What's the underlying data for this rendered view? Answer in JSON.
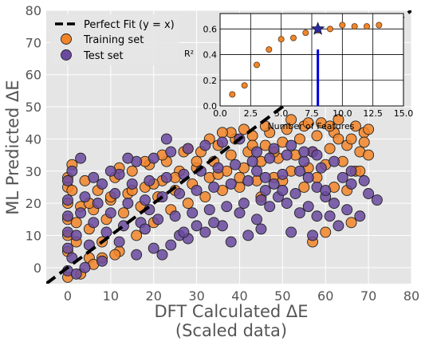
{
  "chart_data": [
    {
      "type": "scatter",
      "xlabel": "DFT Calculated ΔE",
      "xlabel_line2": "(Scaled data)",
      "ylabel": "ML Predicted ΔE",
      "xlim": [
        -5,
        80
      ],
      "ylim": [
        -5,
        80
      ],
      "xticks": [
        0,
        10,
        20,
        30,
        40,
        50,
        60,
        70,
        80
      ],
      "yticks": [
        0,
        10,
        20,
        30,
        40,
        50,
        60,
        70,
        80
      ],
      "grid": true,
      "legend_position": "top-left",
      "reference_line": {
        "name": "Perfect Fit (y = x)",
        "x": [
          -5,
          80
        ],
        "y": [
          -5,
          80
        ],
        "color": "#000000"
      },
      "series": [
        {
          "name": "Training set",
          "color": "#f28529",
          "points": [
            [
              0,
              5
            ],
            [
              0,
              10
            ],
            [
              0,
              15
            ],
            [
              0,
              20
            ],
            [
              0,
              25
            ],
            [
              0,
              -3
            ],
            [
              2,
              8
            ],
            [
              2,
              14
            ],
            [
              3,
              19
            ],
            [
              4,
              27
            ],
            [
              5,
              3
            ],
            [
              5,
              12
            ],
            [
              6,
              18
            ],
            [
              7,
              24
            ],
            [
              8,
              8
            ],
            [
              9,
              15
            ],
            [
              10,
              21
            ],
            [
              11,
              28
            ],
            [
              12,
              5
            ],
            [
              13,
              17
            ],
            [
              14,
              23
            ],
            [
              15,
              30
            ],
            [
              16,
              10
            ],
            [
              17,
              19
            ],
            [
              18,
              25
            ],
            [
              19,
              32
            ],
            [
              20,
              14
            ],
            [
              21,
              22
            ],
            [
              22,
              27
            ],
            [
              23,
              33
            ],
            [
              24,
              18
            ],
            [
              25,
              24
            ],
            [
              26,
              30
            ],
            [
              27,
              36
            ],
            [
              28,
              20
            ],
            [
              29,
              26
            ],
            [
              30,
              31
            ],
            [
              31,
              36
            ],
            [
              32,
              22
            ],
            [
              33,
              28
            ],
            [
              34,
              33
            ],
            [
              35,
              38
            ],
            [
              36,
              24
            ],
            [
              37,
              30
            ],
            [
              38,
              35
            ],
            [
              39,
              40
            ],
            [
              40,
              25
            ],
            [
              41,
              31
            ],
            [
              42,
              36
            ],
            [
              43,
              41
            ],
            [
              44,
              27
            ],
            [
              45,
              33
            ],
            [
              46,
              38
            ],
            [
              47,
              42
            ],
            [
              48,
              28
            ],
            [
              49,
              34
            ],
            [
              50,
              39
            ],
            [
              51,
              43
            ],
            [
              52,
              30
            ],
            [
              53,
              35
            ],
            [
              54,
              40
            ],
            [
              55,
              44
            ],
            [
              56,
              31
            ],
            [
              57,
              36
            ],
            [
              58,
              41
            ],
            [
              59,
              45
            ],
            [
              60,
              32
            ],
            [
              61,
              37
            ],
            [
              62,
              42
            ],
            [
              63,
              46
            ],
            [
              64,
              33
            ],
            [
              65,
              38
            ],
            [
              66,
              40
            ],
            [
              67,
              30
            ],
            [
              68,
              36
            ],
            [
              69,
              42
            ],
            [
              70,
              43
            ],
            [
              70,
              35
            ],
            [
              65,
              24
            ],
            [
              60,
              11
            ],
            [
              57,
              8
            ],
            [
              66,
              14
            ],
            [
              55,
              25
            ],
            [
              50,
              27
            ],
            [
              45,
              22
            ],
            [
              40,
              28
            ],
            [
              35,
              29
            ],
            [
              30,
              33
            ],
            [
              25,
              28
            ],
            [
              20,
              26
            ],
            [
              15,
              24
            ],
            [
              10,
              22
            ],
            [
              5,
              20
            ],
            [
              1,
              24
            ],
            [
              3,
              -2
            ],
            [
              6,
              1
            ],
            [
              8,
              3
            ],
            [
              11,
              4
            ],
            [
              62,
              25
            ],
            [
              68,
              30
            ],
            [
              58,
              28
            ],
            [
              48,
              36
            ],
            [
              43,
              38
            ],
            [
              38,
              42
            ],
            [
              33,
              40
            ],
            [
              28,
              37
            ],
            [
              22,
              35
            ],
            [
              18,
              33
            ],
            [
              12,
              31
            ],
            [
              63,
              40
            ],
            [
              0,
              28
            ],
            [
              1,
              32
            ],
            [
              67,
              44
            ],
            [
              69,
              39
            ],
            [
              61,
              44
            ],
            [
              56,
              45
            ],
            [
              52,
              46
            ],
            [
              46,
              44
            ],
            [
              41,
              43
            ],
            [
              36,
              42
            ]
          ]
        },
        {
          "name": "Test set",
          "color": "#6a4aa0",
          "points": [
            [
              0,
              -1
            ],
            [
              0,
              6
            ],
            [
              0,
              11
            ],
            [
              0,
              16
            ],
            [
              0,
              21
            ],
            [
              0,
              27
            ],
            [
              1,
              3
            ],
            [
              2,
              10
            ],
            [
              3,
              17
            ],
            [
              4,
              22
            ],
            [
              5,
              7
            ],
            [
              6,
              14
            ],
            [
              7,
              20
            ],
            [
              8,
              26
            ],
            [
              9,
              11
            ],
            [
              10,
              17
            ],
            [
              11,
              23
            ],
            [
              12,
              29
            ],
            [
              13,
              13
            ],
            [
              14,
              20
            ],
            [
              15,
              26
            ],
            [
              16,
              33
            ],
            [
              17,
              14
            ],
            [
              18,
              21
            ],
            [
              19,
              27
            ],
            [
              20,
              34
            ],
            [
              21,
              15
            ],
            [
              22,
              22
            ],
            [
              23,
              28
            ],
            [
              24,
              36
            ],
            [
              25,
              16
            ],
            [
              26,
              23
            ],
            [
              27,
              29
            ],
            [
              28,
              37
            ],
            [
              29,
              17
            ],
            [
              30,
              24
            ],
            [
              31,
              30
            ],
            [
              32,
              38
            ],
            [
              33,
              18
            ],
            [
              34,
              25
            ],
            [
              35,
              31
            ],
            [
              36,
              39
            ],
            [
              37,
              19
            ],
            [
              38,
              26
            ],
            [
              39,
              32
            ],
            [
              40,
              40
            ],
            [
              41,
              20
            ],
            [
              42,
              27
            ],
            [
              43,
              33
            ],
            [
              44,
              36
            ],
            [
              45,
              21
            ],
            [
              46,
              28
            ],
            [
              47,
              34
            ],
            [
              48,
              37
            ],
            [
              49,
              22
            ],
            [
              50,
              29
            ],
            [
              51,
              35
            ],
            [
              52,
              38
            ],
            [
              53,
              23
            ],
            [
              54,
              30
            ],
            [
              55,
              33
            ],
            [
              56,
              19
            ],
            [
              57,
              36
            ],
            [
              58,
              25
            ],
            [
              59,
              31
            ],
            [
              60,
              22
            ],
            [
              62,
              20
            ],
            [
              64,
              28
            ],
            [
              66,
              26
            ],
            [
              68,
              16
            ],
            [
              70,
              23
            ],
            [
              69,
              27
            ],
            [
              65,
              18
            ],
            [
              61,
              16
            ],
            [
              54,
              17
            ],
            [
              51,
              20
            ],
            [
              47,
              19
            ],
            [
              44,
              15
            ],
            [
              40,
              17
            ],
            [
              36,
              13
            ],
            [
              32,
              11
            ],
            [
              28,
              9
            ],
            [
              24,
              7
            ],
            [
              20,
              6
            ],
            [
              16,
              4
            ],
            [
              12,
              8
            ],
            [
              8,
              2
            ],
            [
              4,
              0
            ],
            [
              2,
              -2
            ],
            [
              14,
              34
            ],
            [
              10,
              30
            ],
            [
              6,
              28
            ],
            [
              3,
              34
            ],
            [
              1,
              30
            ],
            [
              52,
              11
            ],
            [
              57,
              10
            ],
            [
              63,
              13
            ],
            [
              72,
              21
            ],
            [
              42,
              10
            ],
            [
              38,
              8
            ],
            [
              30,
              13
            ],
            [
              26,
              10
            ],
            [
              22,
              4
            ],
            [
              18,
              12
            ],
            [
              60,
              24
            ],
            [
              56,
              28
            ],
            [
              48,
              26
            ],
            [
              44,
              30
            ],
            [
              46,
              24
            ],
            [
              50,
              24
            ],
            [
              55,
              36
            ],
            [
              58,
              35
            ],
            [
              62,
              33
            ],
            [
              66,
              30
            ],
            [
              58,
              16
            ],
            [
              45,
              12
            ],
            [
              34,
              14
            ],
            [
              27,
              11
            ],
            [
              23,
              40
            ],
            [
              19,
              18
            ]
          ]
        }
      ]
    },
    {
      "type": "scatter",
      "xlabel": "Number of Features",
      "ylabel": "R²",
      "xlim": [
        0,
        15
      ],
      "ylim": [
        0,
        0.72
      ],
      "xticks": [
        "0.0",
        "2.5",
        "5.0",
        "7.5",
        "10.0",
        "12.5",
        "15.0"
      ],
      "yticks": [
        "0.0",
        "0.2",
        "0.4",
        "0.6"
      ],
      "grid": true,
      "series": [
        {
          "name": "",
          "color": "#f28529",
          "x": [
            1,
            2,
            3,
            4,
            5,
            6,
            7,
            8,
            9,
            10,
            11,
            12,
            13
          ],
          "y": [
            0.09,
            0.16,
            0.32,
            0.44,
            0.52,
            0.53,
            0.57,
            0.59,
            0.6,
            0.63,
            0.62,
            0.62,
            0.63
          ]
        }
      ],
      "highlight": {
        "marker": "star",
        "color": "#2b2aa6",
        "x": 8,
        "y": 0.6
      },
      "bar": {
        "x": 8,
        "y": 0.44,
        "color": "#0000dd"
      }
    }
  ]
}
